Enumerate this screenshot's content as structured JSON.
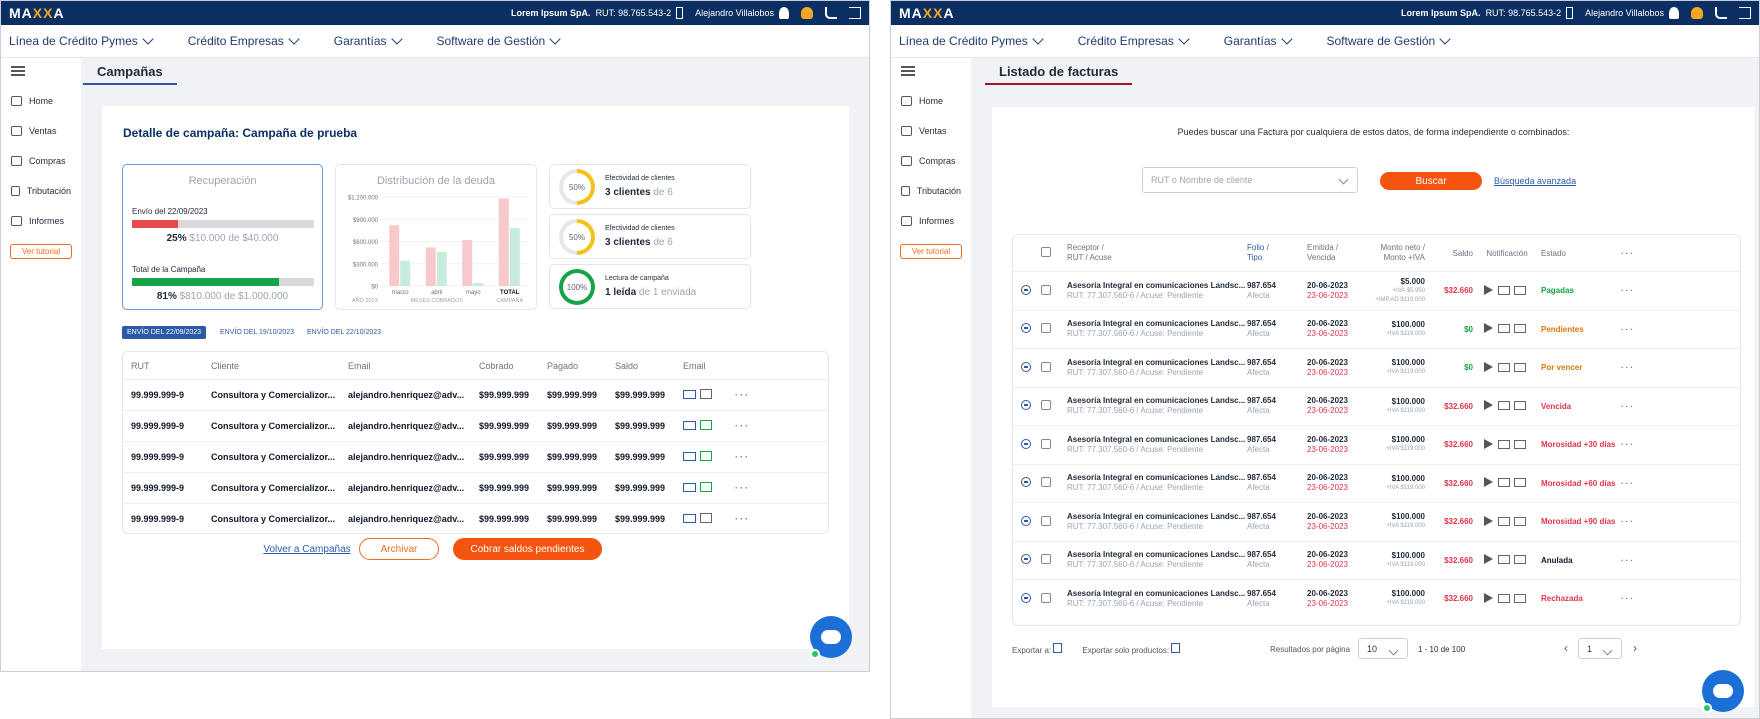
{
  "brand": {
    "logo_main": "MA",
    "logo_x": "XX",
    "logo_end": "A"
  },
  "header": {
    "company": "Lorem Ipsum SpA.",
    "rut": "RUT: 98.765.543-2",
    "user": "Alejandro Villalobos"
  },
  "nav": [
    "Línea de Crédito Pymes",
    "Crédito Empresas",
    "Garantías",
    "Software de Gestión"
  ],
  "sidebar": {
    "items": [
      "Home",
      "Ventas",
      "Compras",
      "Tributación",
      "Informes"
    ],
    "tutorial": "Ver tutorial"
  },
  "left": {
    "tab": "Campañas",
    "detail_title": "Detalle de campaña: Campaña de prueba",
    "recuperacion": {
      "title": "Recuperación",
      "envio_label": "Envío del 22/09/2023",
      "envio_pct": "25%",
      "envio_amount": "$10.000 de $40.000",
      "envio_fraction": 0.25,
      "total_label": "Total de la Campaña",
      "total_pct": "81%",
      "total_amount": "$810.000 de $1.000.000",
      "total_fraction": 0.81
    },
    "chart_data": {
      "type": "bar",
      "title": "Distribución de la deuda",
      "yticks": [
        "$1.200.000",
        "$900.000",
        "$600.000",
        "$300.000",
        "$0"
      ],
      "ylim": [
        0,
        1200000
      ],
      "categories": [
        "marzo",
        "abril",
        "mayo",
        "TOTAL"
      ],
      "series": [
        {
          "name": "",
          "color": "#f8c9cc",
          "values": [
            820000,
            520000,
            620000,
            1180000
          ]
        },
        {
          "name": "",
          "color": "#c7ecdc",
          "values": [
            340000,
            460000,
            40000,
            780000
          ]
        }
      ],
      "x_sub_left": "AÑO 2023",
      "x_sub_mid": "MESES COBRADOS",
      "x_sub_right": "CAMPAÑA"
    },
    "kpis": [
      {
        "pct": "50%",
        "fraction": 0.5,
        "color": "#f2c21b",
        "label": "Efectividad de clientes",
        "strong": "3 clientes",
        "rest": "de 6"
      },
      {
        "pct": "50%",
        "fraction": 0.5,
        "color": "#f2c21b",
        "label": "Efectividad de clientes",
        "strong": "3 clientes",
        "rest": "de 6"
      },
      {
        "pct": "100%",
        "fraction": 1.0,
        "color": "#16a34a",
        "label": "Lectura de campaña",
        "strong": "1 leída",
        "rest": "de 1 enviada"
      }
    ],
    "filters": [
      "ENVÍO DEL 22/09/2023",
      "ENVÍO DEL 19/10/2023",
      "ENVÍO DEL 22/10/2023"
    ],
    "table": {
      "headers": [
        "RUT",
        "Cliente",
        "Email",
        "Cobrado",
        "Pagado",
        "Saldo",
        "Email"
      ],
      "rows": [
        {
          "rut": "99.999.999-9",
          "cliente": "Consultora y Comercializor...",
          "email": "alejandro.henriquez@adv...",
          "cobrado": "$99.999.999",
          "pagado": "$99.999.999",
          "saldo": "$99.999.999",
          "opened": false
        },
        {
          "rut": "99.999.999-9",
          "cliente": "Consultora y Comercializor...",
          "email": "alejandro.henriquez@adv...",
          "cobrado": "$99.999.999",
          "pagado": "$99.999.999",
          "saldo": "$99.999.999",
          "opened": true
        },
        {
          "rut": "99.999.999-9",
          "cliente": "Consultora y Comercializor...",
          "email": "alejandro.henriquez@adv...",
          "cobrado": "$99.999.999",
          "pagado": "$99.999.999",
          "saldo": "$99.999.999",
          "opened": true
        },
        {
          "rut": "99.999.999-9",
          "cliente": "Consultora y Comercializor...",
          "email": "alejandro.henriquez@adv...",
          "cobrado": "$99.999.999",
          "pagado": "$99.999.999",
          "saldo": "$99.999.999",
          "opened": true
        },
        {
          "rut": "99.999.999-9",
          "cliente": "Consultora y Comercializor...",
          "email": "alejandro.henriquez@adv...",
          "cobrado": "$99.999.999",
          "pagado": "$99.999.999",
          "saldo": "$99.999.999",
          "opened": false
        }
      ]
    },
    "actions": {
      "back": "Volver a Campañas",
      "archive": "Archivar",
      "charge": "Cobrar saldos pendientes"
    }
  },
  "right": {
    "tab": "Listado de facturas",
    "search_hint": "Puedes buscar una Factura por cualquiera de estos datos, de forma independiente o combinados:",
    "search_placeholder": "RUT o Nombre de cliente",
    "search_button": "Buscar",
    "advanced": "Búsqueda avanzada",
    "headers": {
      "receptor": "Receptor /",
      "rut_acuse": "RUT / Acuse",
      "folio": "Folio /",
      "tipo": "Tipo",
      "emitida": "Emitida /",
      "vencida": "Vencida",
      "monto": "Monto neto /",
      "monto_iva": "Monto +IVA",
      "saldo": "Saldo",
      "notificacion": "Notificación",
      "estado": "Estado"
    },
    "rows": [
      {
        "name": "Asesoría Integral en comunicaciones Landsc...",
        "rut": "RUT: 77.307.560-6",
        "acuse": "Acuse: Pendiente",
        "folio": "987.654",
        "tipo": "Afecta",
        "emitida": "20-06-2023",
        "vencida": "23-06-2023",
        "monto": "$5.000",
        "iva": "+IVA $5.950",
        "extra": "+IMP.AD $119.000",
        "saldo": "$32.660",
        "saldo_color": "#e0344b",
        "estado": "Pagadas",
        "estado_color": "#16a34a"
      },
      {
        "name": "Asesoría Integral en comunicaciones Landsc...",
        "rut": "RUT: 77.307.560-6",
        "acuse": "Acuse: Pendiente",
        "folio": "987.654",
        "tipo": "Afecta",
        "emitida": "20-06-2023",
        "vencida": "23-06-2023",
        "monto": "$100.000",
        "iva": "+IVA $119.000",
        "extra": "",
        "saldo": "$0",
        "saldo_color": "#16a34a",
        "estado": "Pendientes",
        "estado_color": "#d97706"
      },
      {
        "name": "Asesoría Integral en comunicaciones Landsc...",
        "rut": "RUT: 77.307.560-6",
        "acuse": "Acuse: Pendiente",
        "folio": "987.654",
        "tipo": "Afecta",
        "emitida": "20-06-2023",
        "vencida": "23-06-2023",
        "monto": "$100.000",
        "iva": "+IVA $119.000",
        "extra": "",
        "saldo": "$0",
        "saldo_color": "#16a34a",
        "estado": "Por vencer",
        "estado_color": "#d97706"
      },
      {
        "name": "Asesoría Integral en comunicaciones Landsc...",
        "rut": "RUT: 77.307.560-6",
        "acuse": "Acuse: Pendiente",
        "folio": "987.654",
        "tipo": "Afecta",
        "emitida": "20-06-2023",
        "vencida": "23-06-2023",
        "monto": "$100.000",
        "iva": "+IVA $119.000",
        "extra": "",
        "saldo": "$32.660",
        "saldo_color": "#e0344b",
        "estado": "Vencida",
        "estado_color": "#e0344b"
      },
      {
        "name": "Asesoría Integral en comunicaciones Landsc...",
        "rut": "RUT: 77.307.560-6",
        "acuse": "Acuse: Pendiente",
        "folio": "987.654",
        "tipo": "Afecta",
        "emitida": "20-06-2023",
        "vencida": "23-06-2023",
        "monto": "$100.000",
        "iva": "+IVA $119.000",
        "extra": "",
        "saldo": "$32.660",
        "saldo_color": "#e0344b",
        "estado": "Morosidad +30 días",
        "estado_color": "#e0344b"
      },
      {
        "name": "Asesoría Integral en comunicaciones Landsc...",
        "rut": "RUT: 77.307.560-6",
        "acuse": "Acuse: Pendiente",
        "folio": "987.654",
        "tipo": "Afecta",
        "emitida": "20-06-2023",
        "vencida": "23-06-2023",
        "monto": "$100.000",
        "iva": "+IVA $119.000",
        "extra": "",
        "saldo": "$32.660",
        "saldo_color": "#e0344b",
        "estado": "Morosidad +60 días",
        "estado_color": "#e0344b"
      },
      {
        "name": "Asesoría Integral en comunicaciones Landsc...",
        "rut": "RUT: 77.307.560-6",
        "acuse": "Acuse: Pendiente",
        "folio": "987.654",
        "tipo": "Afecta",
        "emitida": "20-06-2023",
        "vencida": "23-06-2023",
        "monto": "$100.000",
        "iva": "+IVA $119.000",
        "extra": "",
        "saldo": "$32.660",
        "saldo_color": "#e0344b",
        "estado": "Morosidad +90 días",
        "estado_color": "#e0344b"
      },
      {
        "name": "Asesoría Integral en comunicaciones Landsc...",
        "rut": "RUT: 77.307.560-6",
        "acuse": "Acuse: Pendiente",
        "folio": "987.654",
        "tipo": "Afecta",
        "emitida": "20-06-2023",
        "vencida": "23-06-2023",
        "monto": "$100.000",
        "iva": "+IVA $119.000",
        "extra": "",
        "saldo": "$32.660",
        "saldo_color": "#e0344b",
        "estado": "Anulada",
        "estado_color": "#111827"
      },
      {
        "name": "Asesoría Integral en comunicaciones Landsc...",
        "rut": "RUT: 77.307.560-6",
        "acuse": "Acuse: Pendiente",
        "folio": "987.654",
        "tipo": "Afecta",
        "emitida": "20-06-2023",
        "vencida": "23-06-2023",
        "monto": "$100.000",
        "iva": "+IVA $119.000",
        "extra": "",
        "saldo": "$32.660",
        "saldo_color": "#e0344b",
        "estado": "Rechazada",
        "estado_color": "#e0344b"
      }
    ],
    "footer": {
      "export": "Exportar a:",
      "export_products": "Exportar solo productos:",
      "per_page_label": "Resultados por página",
      "per_page": "10",
      "range": "1 - 10 de 100",
      "page": "1"
    }
  }
}
